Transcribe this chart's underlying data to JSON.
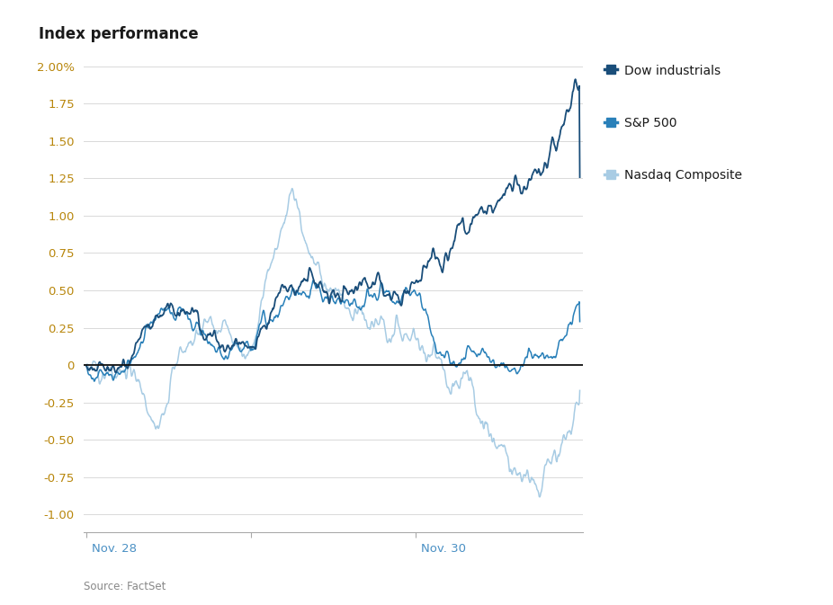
{
  "title": "Index performance",
  "source": "Source: FactSet",
  "ytick_vals": [
    -1.0,
    -0.75,
    -0.5,
    -0.25,
    0,
    0.25,
    0.5,
    0.75,
    1.0,
    1.25,
    1.5,
    1.75,
    2.0
  ],
  "ylim": [
    -1.12,
    2.12
  ],
  "dow_color": "#1a4e7a",
  "sp500_color": "#2980b9",
  "nasdaq_color": "#a8cce4",
  "background_color": "#ffffff",
  "legend_dow": "Dow industrials",
  "legend_sp": "S&P 500",
  "legend_nasdaq": "Nasdaq Composite",
  "title_color": "#1a1a1a",
  "grid_color": "#d9d9d9",
  "tick_label_color": "#b8860b",
  "xtick_label_color": "#4a90c4",
  "zero_line_color": "#111111",
  "n_day": 300,
  "n_total": 900
}
